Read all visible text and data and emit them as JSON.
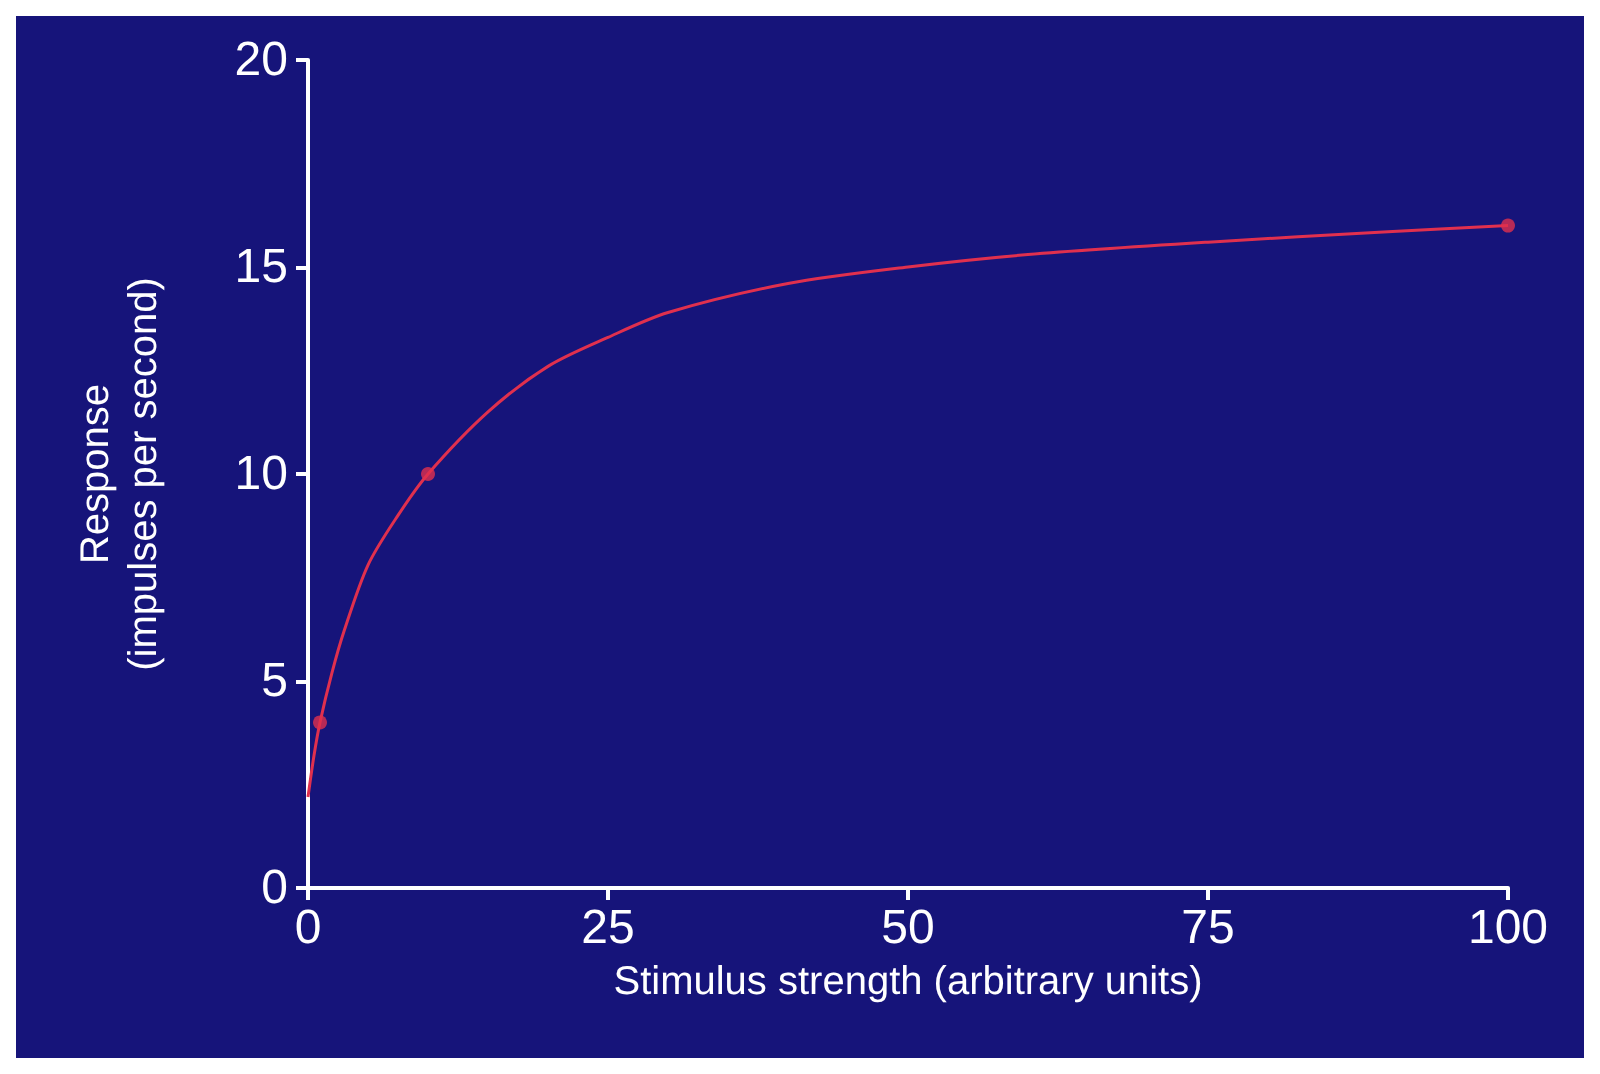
{
  "chart_data": {
    "type": "line",
    "xlabel": "Stimulus strength (arbitrary units)",
    "ylabel": "Response\n(impulses per second)",
    "xlim": [
      0,
      100
    ],
    "xticks": [
      0,
      25,
      50,
      75,
      100
    ],
    "ylim": [
      0,
      20
    ],
    "yticks": [
      0,
      5,
      10,
      15,
      20
    ],
    "series": [
      {
        "type": "line",
        "marker": "none",
        "color": "#e0304e",
        "x": [
          0,
          0.5,
          1,
          2,
          3,
          5,
          7.5,
          10,
          15,
          20,
          25,
          30,
          40,
          50,
          60,
          75,
          90,
          100
        ],
        "values": [
          2.2,
          3.2,
          4,
          5.2,
          6.2,
          7.8,
          9,
          10,
          11.5,
          12.6,
          13.3,
          13.9,
          14.6,
          15,
          15.3,
          15.6,
          15.85,
          16
        ]
      },
      {
        "type": "scatter",
        "marker": "circle",
        "color": "#e0304e",
        "x": [
          1,
          10,
          100
        ],
        "values": [
          4,
          10,
          16
        ]
      }
    ]
  }
}
